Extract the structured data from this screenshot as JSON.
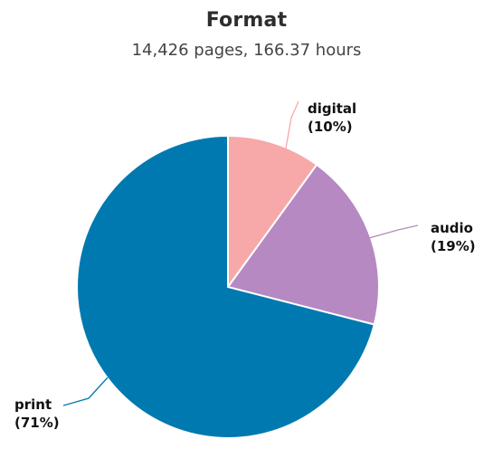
{
  "chart_data": {
    "type": "pie",
    "title": "Format",
    "subtitle": "14,426 pages, 166.37 hours",
    "start_angle_deg": 0,
    "direction": "clockwise",
    "slices": [
      {
        "label": "digital",
        "value": 10,
        "pct_label": "(10%)",
        "color": "#f7a8a8"
      },
      {
        "label": "audio",
        "value": 19,
        "pct_label": "(19%)",
        "color": "#b689c2"
      },
      {
        "label": "print",
        "value": 71,
        "pct_label": "(71%)",
        "color": "#0079b0"
      }
    ]
  }
}
